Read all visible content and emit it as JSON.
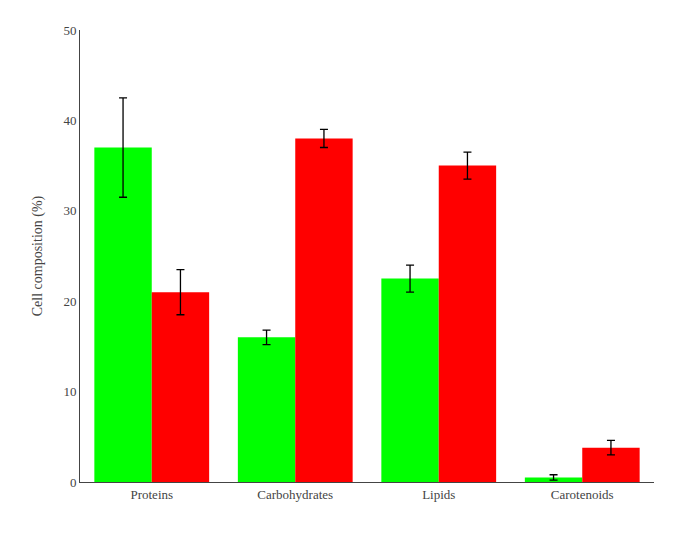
{
  "chart_data": {
    "type": "bar",
    "ylabel": "Cell composition (%)",
    "categories": [
      "Proteins",
      "Carbohydrates",
      "Lipids",
      "Carotenoids"
    ],
    "series": [
      {
        "color": "#00FF00",
        "values": [
          37.0,
          16.0,
          22.5,
          0.5
        ],
        "errors": [
          5.5,
          0.8,
          1.5,
          0.3
        ]
      },
      {
        "color": "#FF0000",
        "values": [
          21.0,
          38.0,
          35.0,
          3.8
        ],
        "errors": [
          2.5,
          1.0,
          1.5,
          0.8
        ]
      }
    ],
    "error_color": "#000000",
    "ylim": [
      0,
      50
    ],
    "yticks": [
      0,
      10,
      20,
      30,
      40,
      50
    ],
    "grid": false
  }
}
